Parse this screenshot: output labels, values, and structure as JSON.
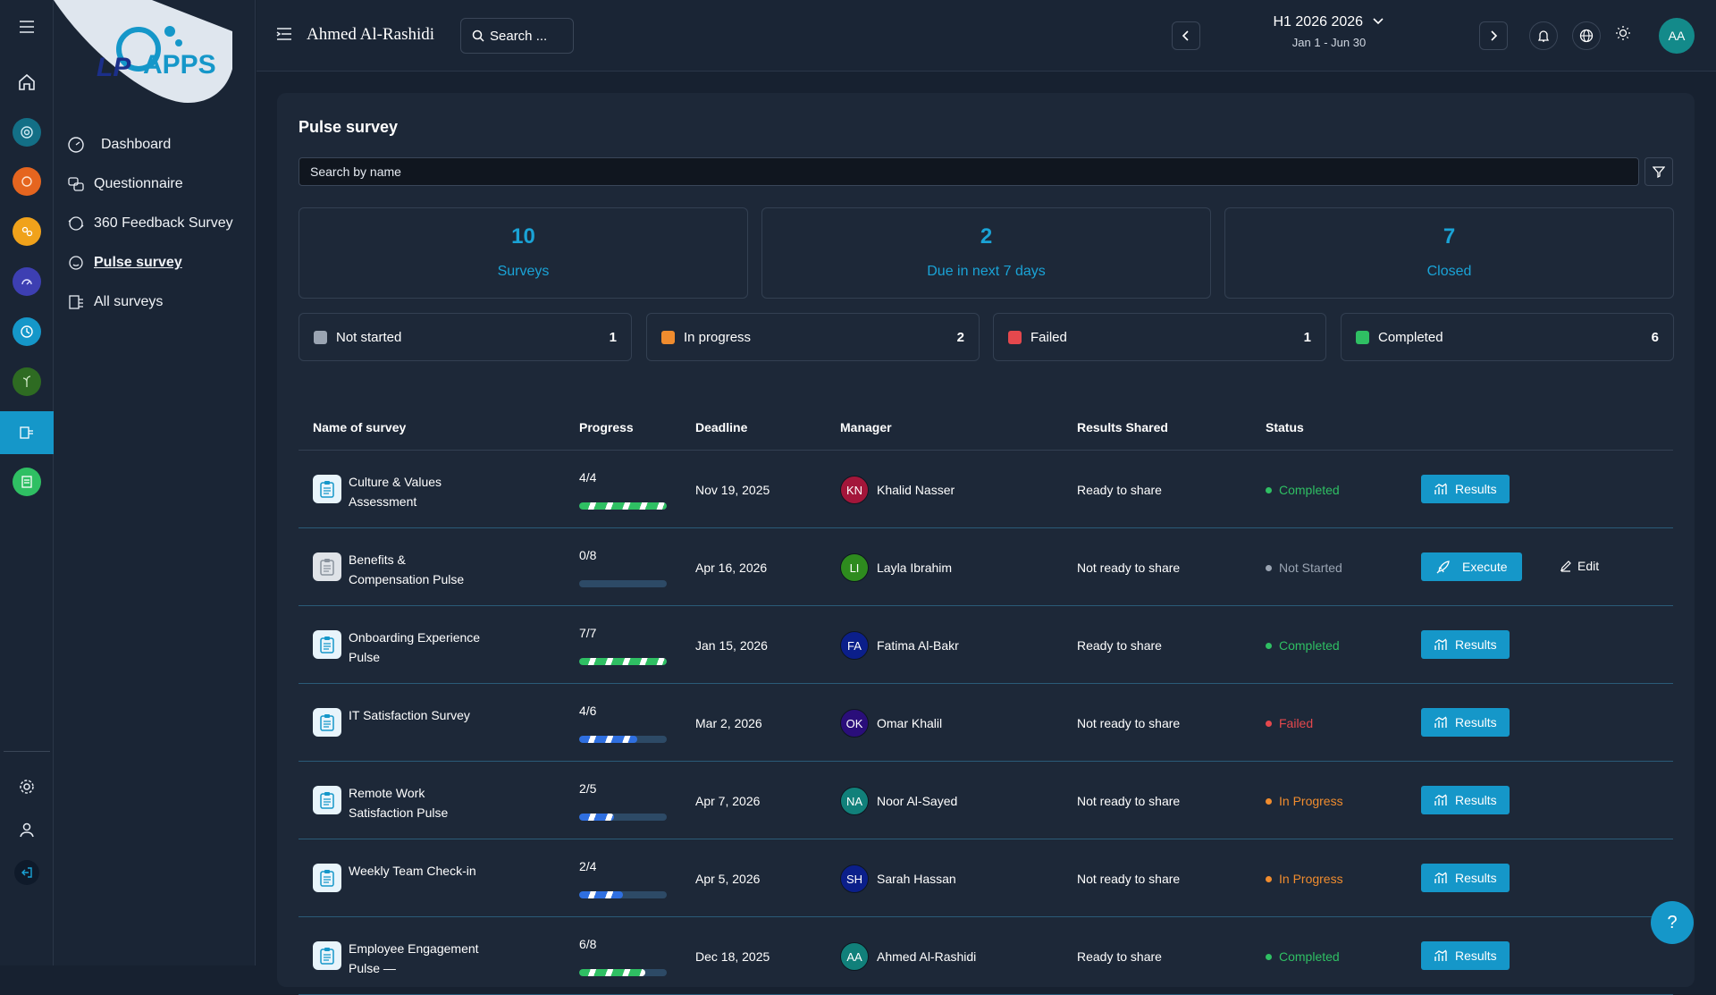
{
  "app": {
    "brand": "APPS",
    "brand_prefix": "LP"
  },
  "header": {
    "user_name": "Ahmed Al-Rashidi",
    "search_label": "Search ...",
    "period_title": "H1 2026 2026",
    "period_range": "Jan 1 - Jun 30",
    "avatar_initials": "AA"
  },
  "sidebar": {
    "items": [
      {
        "label": "Dashboard"
      },
      {
        "label": "Questionnaire"
      },
      {
        "label": "360 Feedback Survey"
      },
      {
        "label": "Pulse survey",
        "active": true
      },
      {
        "label": "All surveys"
      }
    ]
  },
  "page": {
    "title": "Pulse survey",
    "search_placeholder": "Search by name"
  },
  "stats": [
    {
      "value": "10",
      "label": "Surveys"
    },
    {
      "value": "2",
      "label": "Due in next 7 days"
    },
    {
      "value": "7",
      "label": "Closed"
    }
  ],
  "status_summary": [
    {
      "label": "Not started",
      "count": "1",
      "color": "#9aa4b2"
    },
    {
      "label": "In progress",
      "count": "2",
      "color": "#f08c2e"
    },
    {
      "label": "Failed",
      "count": "1",
      "color": "#e5484d"
    },
    {
      "label": "Completed",
      "count": "6",
      "color": "#2fbf63"
    }
  ],
  "table": {
    "columns": [
      "Name of survey",
      "Progress",
      "Deadline",
      "Manager",
      "Results Shared",
      "Status"
    ],
    "rows": [
      {
        "name": "Culture & Values Assessment",
        "progress": "4/4",
        "progress_ratio": 1.0,
        "deadline": "Nov 19, 2025",
        "manager_initials": "KN",
        "manager": "Khalid Nasser",
        "manager_color": "#a3163a",
        "results": "Ready to share",
        "status": "Completed",
        "action": "Results"
      },
      {
        "name": "Benefits & Compensation Pulse",
        "progress": "0/8",
        "progress_ratio": 0.0,
        "deadline": "Apr 16, 2026",
        "manager_initials": "LI",
        "manager": "Layla Ibrahim",
        "manager_color": "#2e8b1e",
        "results": "Not ready to share",
        "status": "Not Started",
        "action": "Execute",
        "secondary_action": "Edit"
      },
      {
        "name": "Onboarding Experience Pulse",
        "progress": "7/7",
        "progress_ratio": 1.0,
        "deadline": "Jan 15, 2026",
        "manager_initials": "FA",
        "manager": "Fatima Al-Bakr",
        "manager_color": "#0b1f8a",
        "results": "Ready to share",
        "status": "Completed",
        "action": "Results"
      },
      {
        "name": "IT Satisfaction Survey",
        "progress": "4/6",
        "progress_ratio": 0.667,
        "deadline": "Mar 2, 2026",
        "manager_initials": "OK",
        "manager": "Omar Khalil",
        "manager_color": "#2a0e7a",
        "results": "Not ready to share",
        "status": "Failed",
        "action": "Results"
      },
      {
        "name": "Remote Work Satisfaction Pulse",
        "progress": "2/5",
        "progress_ratio": 0.4,
        "deadline": "Apr 7, 2026",
        "manager_initials": "NA",
        "manager": "Noor Al-Sayed",
        "manager_color": "#11807a",
        "results": "Not ready to share",
        "status": "In Progress",
        "action": "Results"
      },
      {
        "name": "Weekly Team Check-in",
        "progress": "2/4",
        "progress_ratio": 0.5,
        "deadline": "Apr 5, 2026",
        "manager_initials": "SH",
        "manager": "Sarah Hassan",
        "manager_color": "#0b1f8a",
        "results": "Not ready to share",
        "status": "In Progress",
        "action": "Results"
      },
      {
        "name": "Employee Engagement Pulse —",
        "progress": "6/8",
        "progress_ratio": 0.75,
        "deadline": "Dec 18, 2025",
        "manager_initials": "AA",
        "manager": "Ahmed Al-Rashidi",
        "manager_color": "#11807a",
        "results": "Ready to share",
        "status": "Completed",
        "action": "Results"
      }
    ]
  },
  "status_colors": {
    "Completed": "#2fbf63",
    "Not Started": "#9aa4b2",
    "Failed": "#e5484d",
    "In Progress": "#f08c2e"
  },
  "help": {
    "label": "?"
  }
}
